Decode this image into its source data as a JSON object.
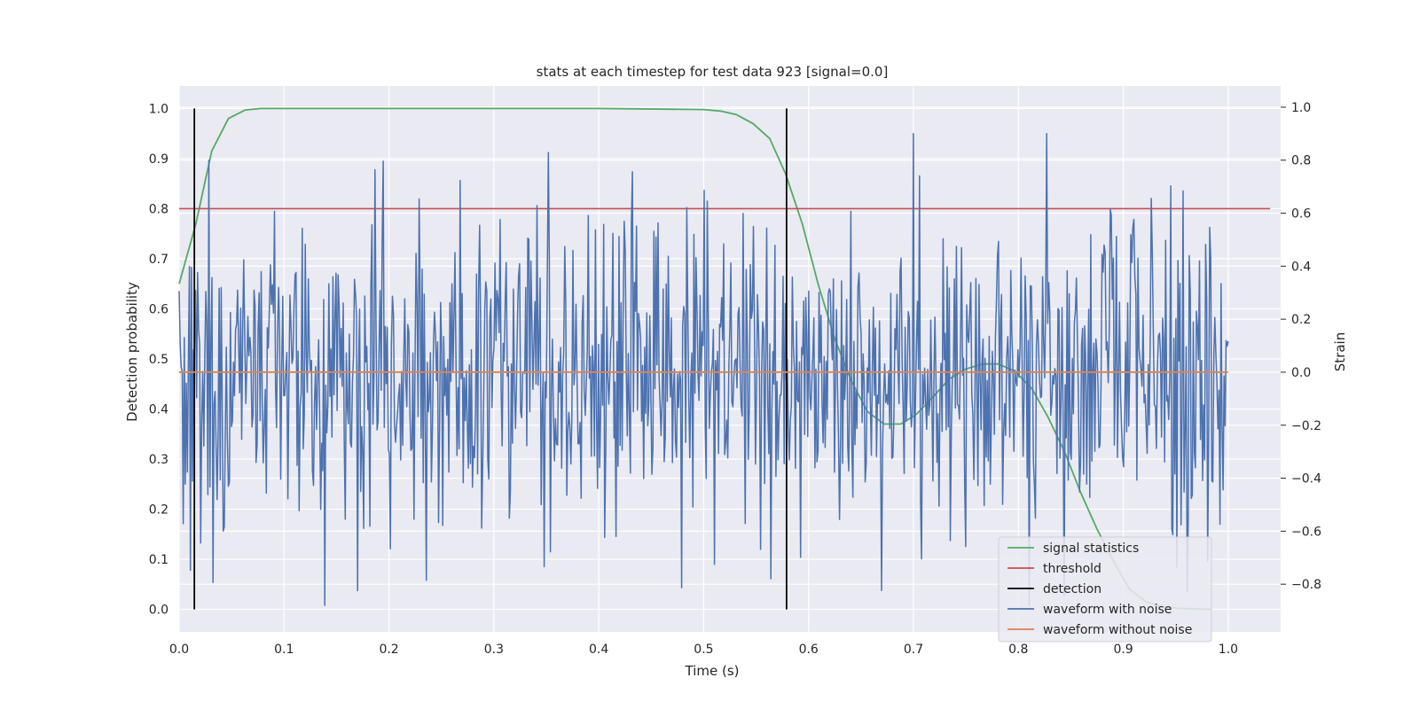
{
  "chart_data": {
    "type": "line",
    "title": "stats at each timestep for test data 923 [signal=0.0]",
    "xlabel": "Time (s)",
    "ylabel": "Detection probability",
    "y2label": "Strain",
    "xlim": [
      0.0,
      1.05
    ],
    "ylim": [
      -0.045,
      1.045
    ],
    "y2lim": [
      -0.98,
      1.08
    ],
    "x_ticks": [
      0.0,
      0.1,
      0.2,
      0.3,
      0.4,
      0.5,
      0.6,
      0.7,
      0.8,
      0.9,
      1.0
    ],
    "y_ticks": [
      0.0,
      0.1,
      0.2,
      0.3,
      0.4,
      0.5,
      0.6,
      0.7,
      0.8,
      0.9,
      1.0
    ],
    "y2_ticks": [
      -0.8,
      -0.6,
      -0.4,
      -0.2,
      0.0,
      0.2,
      0.4,
      0.6,
      0.8,
      1.0
    ],
    "grid": true,
    "legend_position": "lower-right",
    "colors": {
      "signal": "#55a868",
      "threshold": "#c44e52",
      "detection": "#000000",
      "noise": "#4c72b0",
      "clean": "#dd8452",
      "plot_bg": "#eaeaf2",
      "grid": "#ffffff"
    },
    "series": [
      {
        "name": "signal statistics",
        "axis": "left",
        "x": [
          0.0,
          0.016,
          0.031,
          0.047,
          0.063,
          0.078,
          0.1,
          0.2,
          0.3,
          0.4,
          0.5,
          0.516,
          0.531,
          0.547,
          0.563,
          0.578,
          0.594,
          0.609,
          0.625,
          0.641,
          0.656,
          0.672,
          0.688,
          0.703,
          0.719,
          0.734,
          0.75,
          0.766,
          0.781,
          0.797,
          0.813,
          0.828,
          0.844,
          0.859,
          0.875,
          0.891,
          0.906,
          0.922,
          0.938,
          0.953,
          0.969,
          0.984
        ],
        "y": [
          0.65,
          0.77,
          0.915,
          0.98,
          0.997,
          1.0,
          1.0,
          1.0,
          1.0,
          1.0,
          0.998,
          0.995,
          0.988,
          0.97,
          0.94,
          0.87,
          0.77,
          0.65,
          0.54,
          0.455,
          0.395,
          0.37,
          0.37,
          0.39,
          0.425,
          0.46,
          0.48,
          0.49,
          0.49,
          0.475,
          0.44,
          0.385,
          0.315,
          0.235,
          0.16,
          0.095,
          0.04,
          0.015,
          0.005,
          0.002,
          0.001,
          0.0
        ]
      },
      {
        "name": "threshold",
        "axis": "left",
        "x": [
          0.0,
          1.04
        ],
        "y": [
          0.8,
          0.8
        ]
      },
      {
        "name": "detection",
        "axis": "left",
        "x": [
          0.0145,
          0.579
        ],
        "y": [
          0.0,
          1.0
        ]
      },
      {
        "name": "waveform with noise",
        "axis": "right",
        "n_points": 1024,
        "x_range": [
          0.0,
          1.0
        ],
        "std": 0.3,
        "ymin": -0.88,
        "ymax": 0.9
      },
      {
        "name": "waveform without noise",
        "axis": "right",
        "x": [
          0.0,
          1.0
        ],
        "y": [
          0.0,
          0.0
        ]
      }
    ],
    "legend": [
      "signal statistics",
      "threshold",
      "detection",
      "waveform with noise",
      "waveform without noise"
    ]
  }
}
